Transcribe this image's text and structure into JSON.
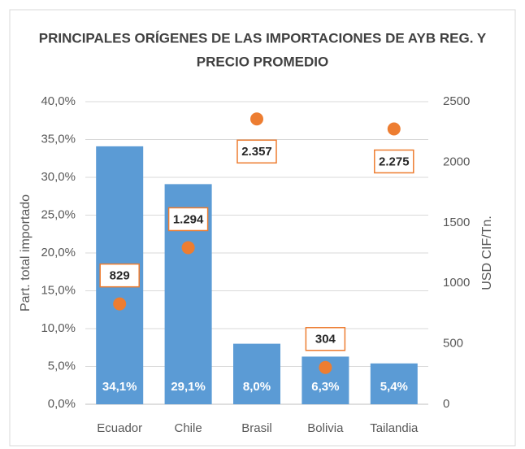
{
  "chart_data": {
    "type": "bar",
    "title": [
      "PRINCIPALES ORÍGENES DE LAS IMPORTACIONES DE AYB REG. Y",
      "PRECIO PROMEDIO"
    ],
    "categories": [
      "Ecuador",
      "Chile",
      "Brasil",
      "Bolivia",
      "Tailandia"
    ],
    "series": [
      {
        "type": "bar",
        "color": "#5b9bd5",
        "values": [
          34.1,
          29.1,
          8.0,
          6.3,
          5.4
        ],
        "value_labels": [
          "34,1%",
          "29,1%",
          "8,0%",
          "6,3%",
          "5,4%"
        ]
      },
      {
        "type": "scatter",
        "axis": "y2",
        "color": "#ed7d31",
        "values": [
          829,
          1294,
          2357,
          304,
          2275
        ],
        "value_labels": [
          "829",
          "1.294",
          "2.357",
          "304",
          "2.275"
        ]
      }
    ],
    "ylabel": "Part. total importado",
    "y2label": "USD CIF/Tn.",
    "ylim": [
      0,
      40
    ],
    "yticks": [
      {
        "value": 0,
        "label": "0,0%"
      },
      {
        "value": 5,
        "label": "5,0%"
      },
      {
        "value": 10,
        "label": "10,0%"
      },
      {
        "value": 15,
        "label": "15,0%"
      },
      {
        "value": 20,
        "label": "20,0%"
      },
      {
        "value": 25,
        "label": "25,0%"
      },
      {
        "value": 30,
        "label": "30,0%"
      },
      {
        "value": 35,
        "label": "35,0%"
      },
      {
        "value": 40,
        "label": "40,0%"
      }
    ],
    "y2lim": [
      0,
      2500
    ],
    "y2ticks": [
      0,
      500,
      1000,
      1500,
      2000,
      2500
    ],
    "grid": true
  }
}
